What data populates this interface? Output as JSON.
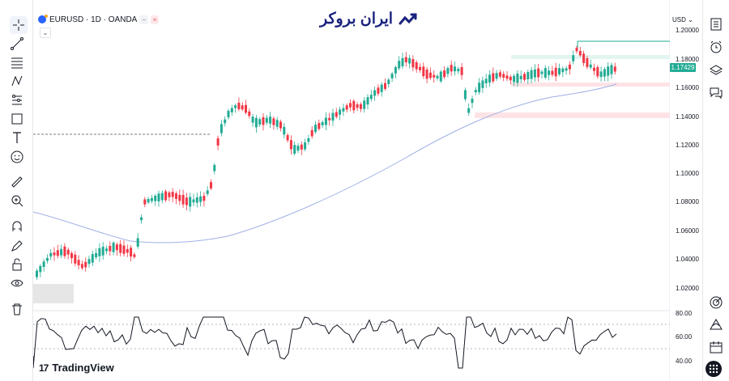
{
  "symbol": {
    "name": "EURUSD · 1D · OANDA",
    "pill1": "−",
    "pill2": "≈"
  },
  "brand": {
    "text": "ایران بروکر"
  },
  "currency": "USD ⌄",
  "price_axis": [
    "1.20000",
    "1.18000",
    "1.16000",
    "1.14000",
    "1.12000",
    "1.10000",
    "1.08000",
    "1.06000",
    "1.04000",
    "1.02000"
  ],
  "current_price": "1.17429",
  "rsi_axis": [
    "80.00",
    "60.00",
    "40.00"
  ],
  "footer": {
    "logo_text": "TradingView",
    "logo_mark": "17"
  },
  "colors": {
    "up": "#22ab94",
    "down": "#f23645",
    "ma": "#9fb0e6",
    "accent": "#2962ff",
    "zone_red": "#fde3e6",
    "zone_green": "#e3f5f1"
  },
  "left_tools": [
    "crosshair-icon",
    "trendline-icon",
    "fib-icon",
    "pattern-icon",
    "forecast-icon",
    "shapes-icon",
    "text-icon",
    "emoji-icon",
    "ruler-icon",
    "zoom-icon",
    "magnet-icon",
    "pencil-lock-icon",
    "lock-icon",
    "eye-icon",
    "trash-icon"
  ],
  "right_tools": [
    "watchlist-icon",
    "alerts-icon",
    "layers-icon",
    "chat-icon",
    "target-icon",
    "ideas-icon",
    "calendar-icon"
  ]
}
